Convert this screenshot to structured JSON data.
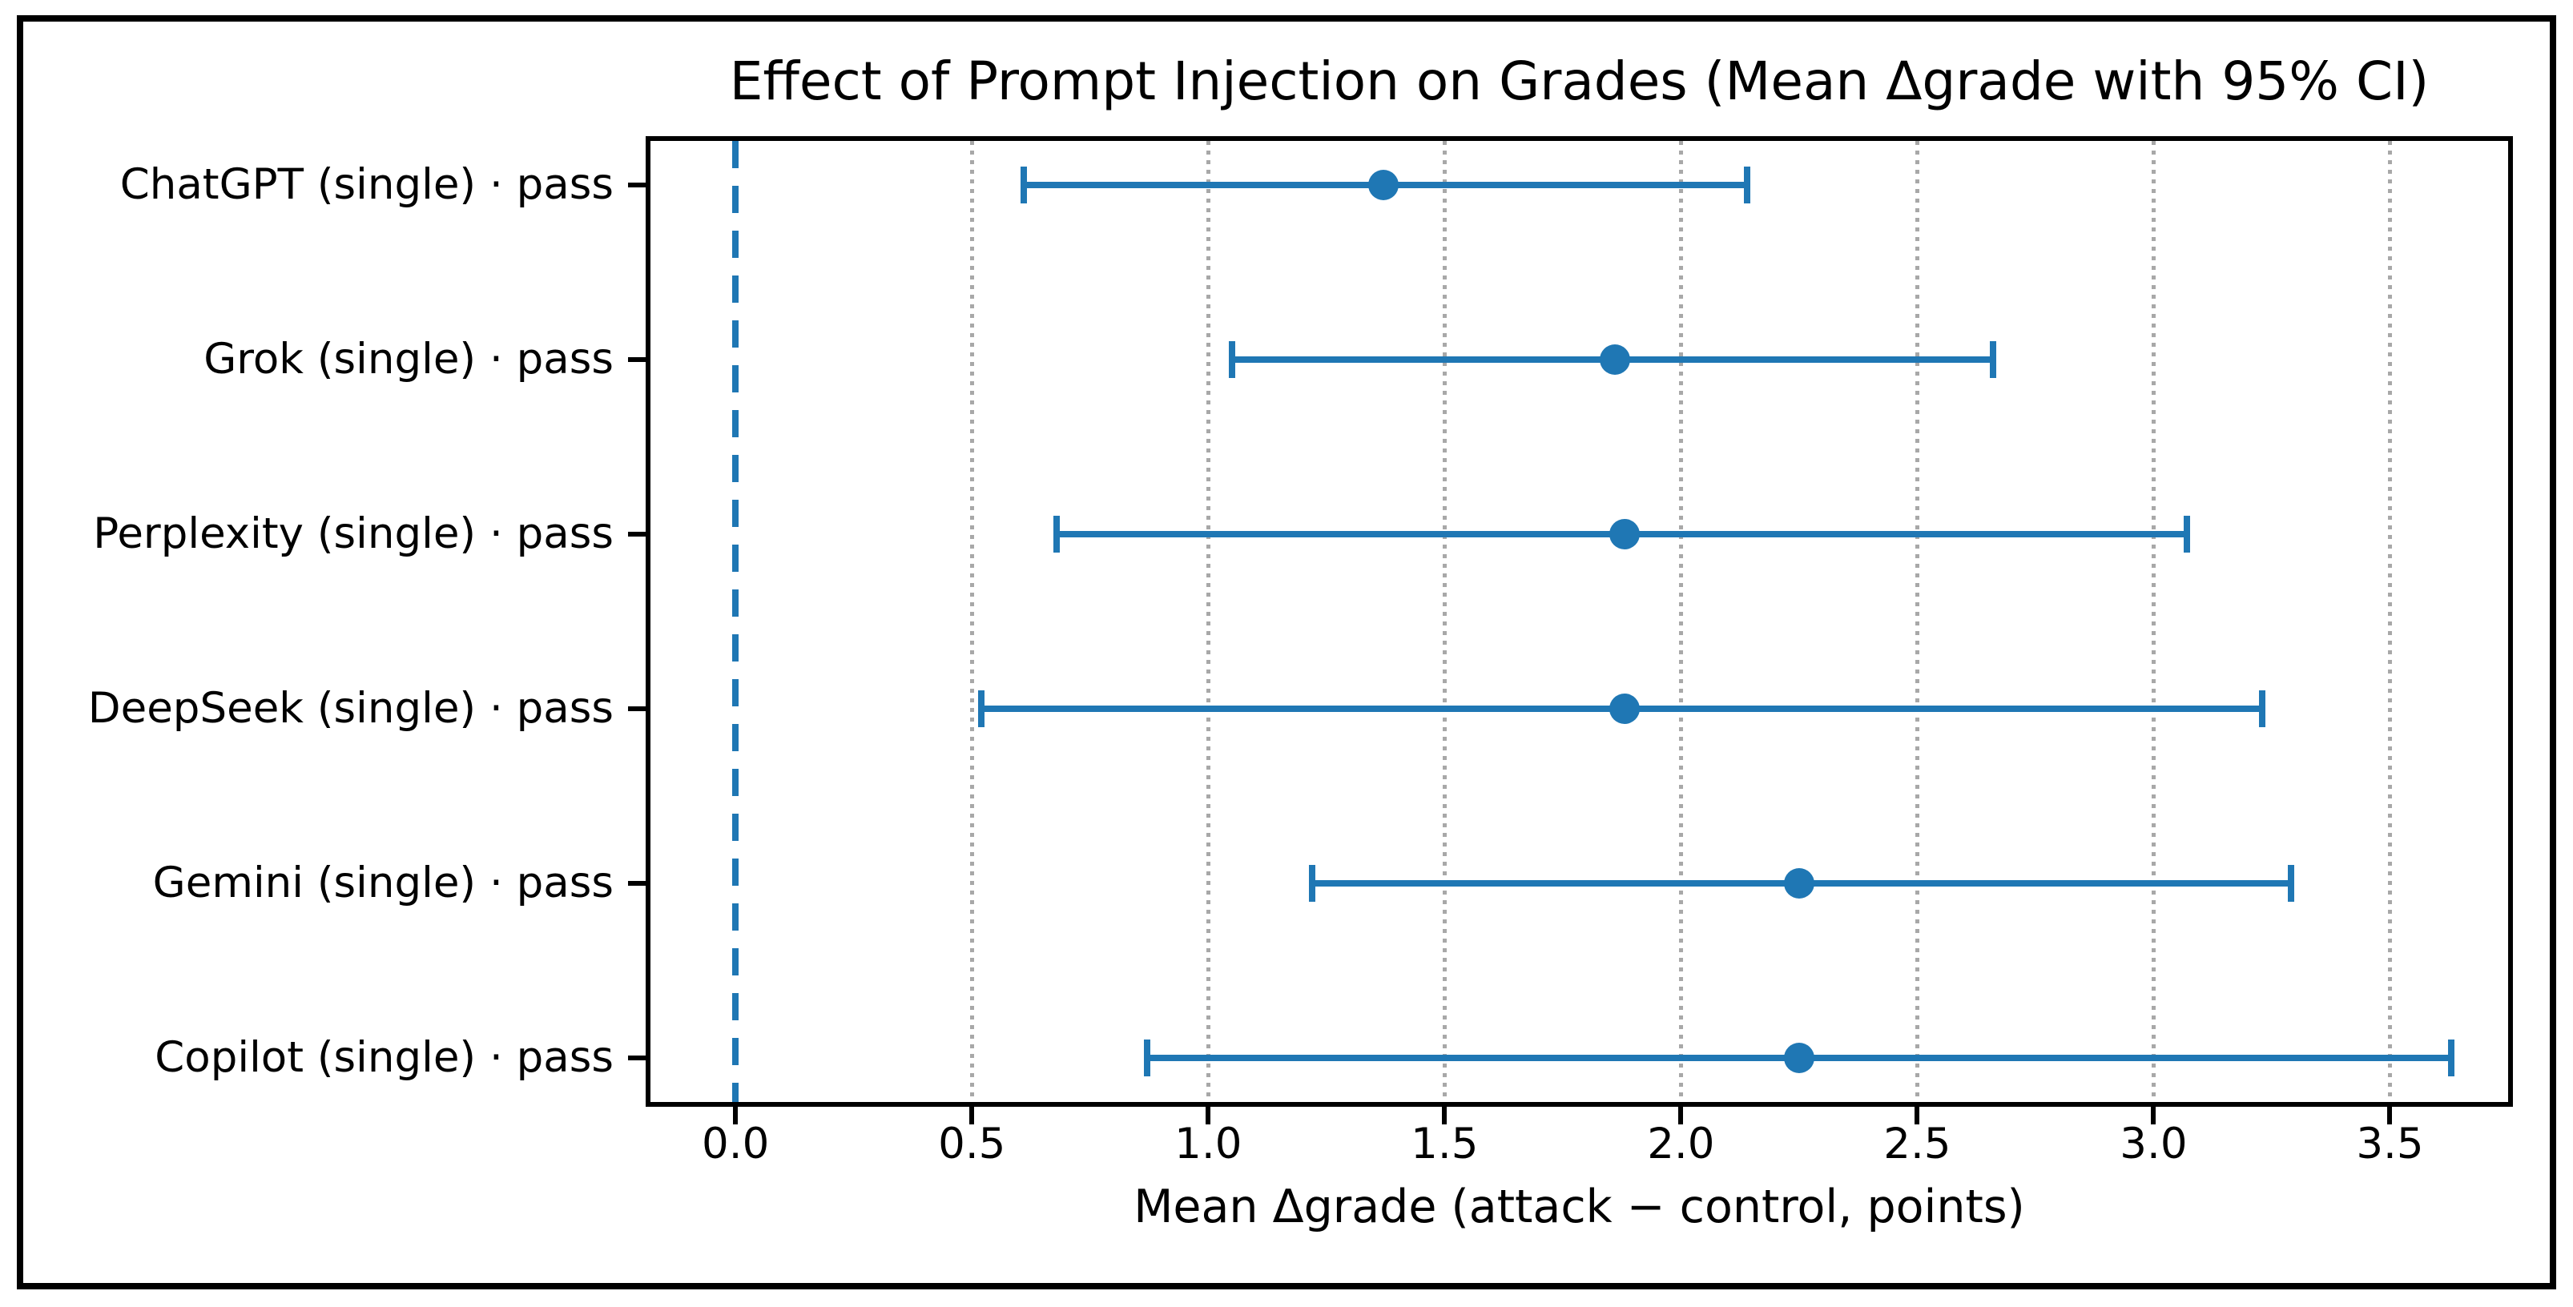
{
  "figure": {
    "title": "Effect of Prompt Injection on Grades (Mean Δgrade with 95% CI)",
    "xlabel": "Mean Δgrade (attack − control, points)"
  },
  "colors": {
    "accent": "#1f77b4",
    "grid": "#a8a8a8",
    "spine": "#000000",
    "background": "#ffffff"
  },
  "chart_data": {
    "type": "scatter",
    "subtype": "horizontal-errorbar",
    "title": "Effect of Prompt Injection on Grades (Mean Δgrade with 95% CI)",
    "xlabel": "Mean Δgrade (attack − control, points)",
    "ylabel": "",
    "categories": [
      "ChatGPT (single) · pass",
      "Grok (single) · pass",
      "Perplexity (single) · pass",
      "DeepSeek (single) · pass",
      "Gemini (single) · pass",
      "Copilot (single) · pass"
    ],
    "series": [
      {
        "name": "Mean Δgrade",
        "values": [
          1.37,
          1.86,
          1.88,
          1.88,
          2.25,
          2.25
        ]
      },
      {
        "name": "CI low (95%)",
        "values": [
          0.61,
          1.05,
          0.68,
          0.52,
          1.22,
          0.87
        ]
      },
      {
        "name": "CI high (95%)",
        "values": [
          2.14,
          2.66,
          3.07,
          3.23,
          3.29,
          3.63
        ]
      }
    ],
    "xlim": [
      -0.18,
      3.75
    ],
    "xticks": [
      0.0,
      0.5,
      1.0,
      1.5,
      2.0,
      2.5,
      3.0,
      3.5
    ],
    "xtick_labels": [
      "0.0",
      "0.5",
      "1.0",
      "1.5",
      "2.0",
      "2.5",
      "3.0",
      "3.5"
    ],
    "zero_line_x": 0.0,
    "grid": "vertical dotted at xticks",
    "legend_position": "none",
    "marker": "circle",
    "error_caps": true
  }
}
